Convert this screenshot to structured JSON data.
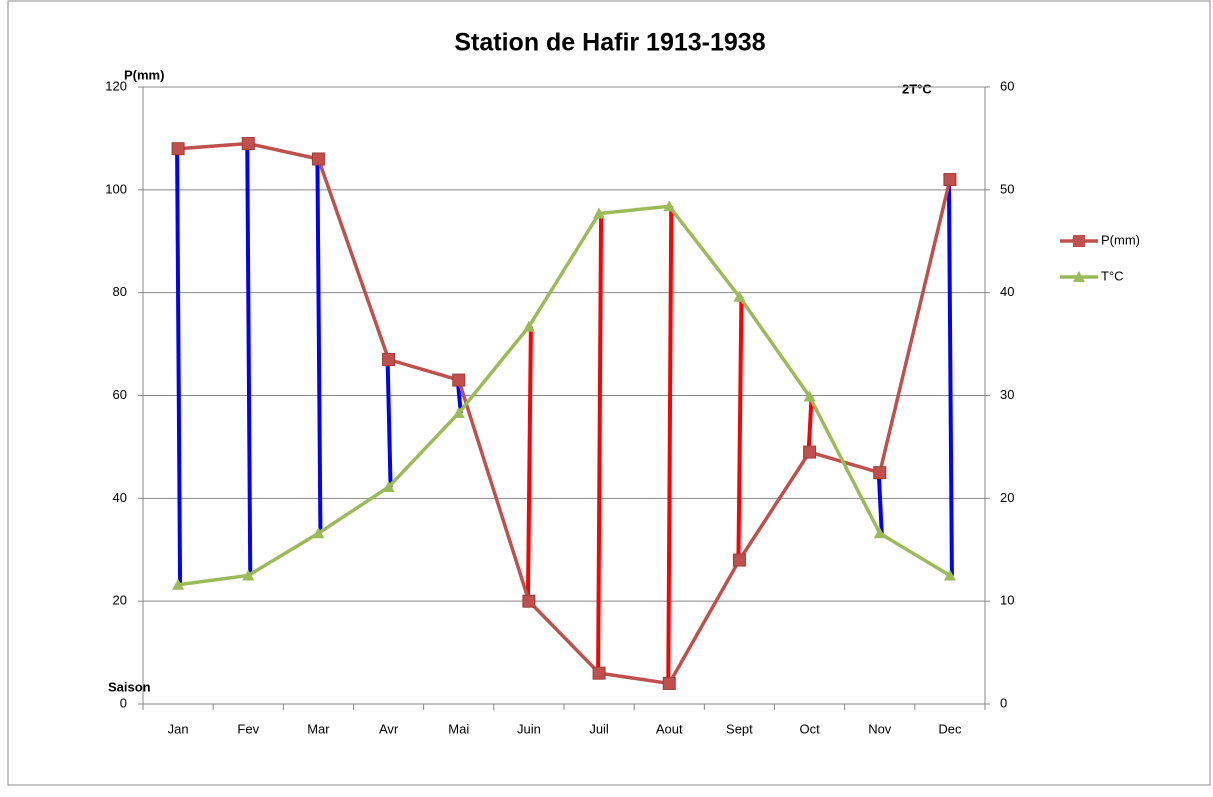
{
  "chart_data": {
    "type": "line",
    "title": "Station de Hafir 1913-1938",
    "y_label": "P(mm)",
    "y2_label": "2T°C",
    "x_label": "Saison",
    "categories": [
      "Jan",
      "Fev",
      "Mar",
      "Avr",
      "Mai",
      "Juin",
      "Juil",
      "Aout",
      "Sept",
      "Oct",
      "Nov",
      "Dec"
    ],
    "series": [
      {
        "name": "P(mm)",
        "color": "#c0504d",
        "marker": "square",
        "values": [
          108,
          109,
          106,
          67,
          63,
          20,
          6,
          4,
          28,
          49,
          45,
          102
        ]
      },
      {
        "name": "T°C",
        "color": "#9bbb59",
        "marker": "triangle",
        "axis": "y2",
        "values": [
          11.6,
          12.5,
          16.6,
          21.1,
          28.3,
          36.7,
          47.7,
          48.4,
          39.6,
          29.9,
          16.6,
          12.5
        ]
      }
    ],
    "humid_color": "#0000ff",
    "dry_color": "#ff0000",
    "ylim": [
      0,
      120
    ],
    "yticks": [
      0,
      20,
      40,
      60,
      80,
      100,
      120
    ],
    "y2lim": [
      0,
      60
    ],
    "y2ticks": [
      0,
      10,
      20,
      30,
      40,
      50,
      60
    ],
    "grid": true,
    "legend": "right"
  }
}
